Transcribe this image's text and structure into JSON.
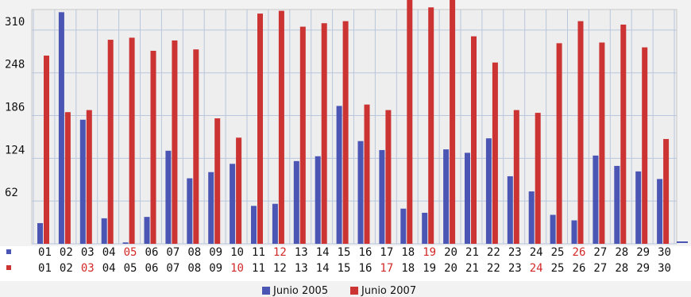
{
  "chart_data": {
    "type": "bar",
    "categories": [
      "01",
      "02",
      "03",
      "04",
      "05",
      "06",
      "07",
      "08",
      "09",
      "10",
      "11",
      "12",
      "13",
      "14",
      "15",
      "16",
      "17",
      "18",
      "19",
      "20",
      "21",
      "22",
      "23",
      "24",
      "25",
      "26",
      "27",
      "28",
      "29",
      "30"
    ],
    "series": [
      {
        "name": "Junio 2005",
        "color": "#4b55b3",
        "values": [
          30,
          336,
          180,
          37,
          2,
          39,
          135,
          95,
          104,
          116,
          55,
          58,
          120,
          127,
          200,
          149,
          136,
          51,
          45,
          137,
          132,
          153,
          98,
          76,
          42,
          34,
          128,
          113,
          105,
          94
        ],
        "highlight_days": [
          "05",
          "12",
          "19",
          "26"
        ]
      },
      {
        "name": "Junio 2007",
        "color": "#cc3333",
        "values": [
          273,
          191,
          194,
          296,
          299,
          280,
          295,
          282,
          182,
          154,
          334,
          338,
          315,
          320,
          323,
          202,
          194,
          356,
          343,
          370,
          301,
          263,
          194,
          190,
          291,
          323,
          292,
          318,
          285,
          152
        ],
        "highlight_days": [
          "03",
          "10",
          "17",
          "24"
        ]
      }
    ],
    "y_ticks": [
      62,
      124,
      186,
      248,
      310
    ],
    "ylim": [
      0,
      372
    ],
    "grid": true,
    "legend_position": "bottom-center",
    "title": "",
    "xlabel": "",
    "ylabel": ""
  }
}
